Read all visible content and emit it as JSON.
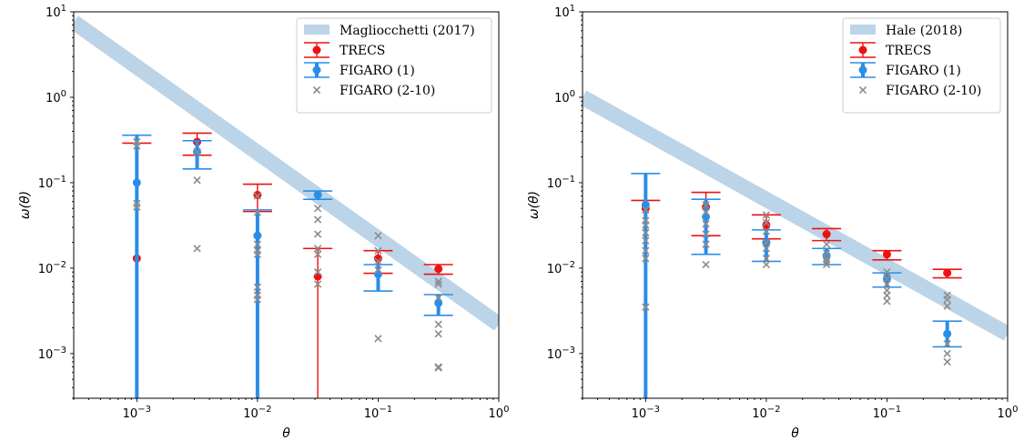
{
  "chart_data": [
    {
      "type": "scatter",
      "title": "",
      "xlabel": "θ",
      "ylabel": "ω(θ)",
      "xscale": "log",
      "yscale": "log",
      "xlim": [
        0.0003,
        1.0
      ],
      "ylim": [
        0.0003,
        10.0
      ],
      "x_ticks": [
        0.001,
        0.01,
        0.1,
        1.0
      ],
      "x_tick_labels": [
        {
          "base": "10",
          "exp": "−3"
        },
        {
          "base": "10",
          "exp": "−2"
        },
        {
          "base": "10",
          "exp": "−1"
        },
        {
          "base": "10",
          "exp": "0"
        }
      ],
      "y_ticks": [
        0.001,
        0.01,
        0.1,
        1.0,
        10.0
      ],
      "y_tick_labels": [
        {
          "base": "10",
          "exp": "−3"
        },
        {
          "base": "10",
          "exp": "−2"
        },
        {
          "base": "10",
          "exp": "−1"
        },
        {
          "base": "10",
          "exp": "0"
        },
        {
          "base": "10",
          "exp": "1"
        }
      ],
      "grid": false,
      "legend_position": "top-right",
      "band": {
        "name": "Magliocchetti (2017)",
        "color": "#bcd4e8",
        "x": [
          0.0003,
          1.0
        ],
        "y_center": [
          7.6,
          0.0022
        ]
      },
      "series": [
        {
          "name": "TRECS",
          "color": "#ee1111",
          "marker": "circle",
          "x": [
            0.001,
            0.00316,
            0.01,
            0.0316,
            0.1,
            0.316
          ],
          "y": [
            0.013,
            0.3,
            0.072,
            0.008,
            0.013,
            0.0098
          ],
          "y_lower": [
            0.0003,
            0.21,
            0.046,
            0.0003,
            0.0087,
            0.0085
          ],
          "y_upper": [
            0.29,
            0.38,
            0.096,
            0.017,
            0.016,
            0.011
          ]
        },
        {
          "name": "FIGARO (1)",
          "color": "#2a8ee8",
          "marker": "circle",
          "x": [
            0.001,
            0.00316,
            0.01,
            0.0316,
            0.1,
            0.316
          ],
          "y": [
            0.1,
            0.23,
            0.024,
            0.072,
            0.0085,
            0.0039
          ],
          "y_lower": [
            0.0003,
            0.145,
            0.0003,
            0.064,
            0.0054,
            0.0028
          ],
          "y_upper": [
            0.36,
            0.31,
            0.048,
            0.08,
            0.011,
            0.0049
          ]
        },
        {
          "name": "FIGARO (2-10)",
          "color": "#8c8c8c",
          "marker": "x",
          "x": [
            0.001,
            0.001,
            0.001,
            0.001,
            0.00316,
            0.00316,
            0.00316,
            0.01,
            0.01,
            0.01,
            0.01,
            0.01,
            0.01,
            0.01,
            0.01,
            0.0316,
            0.0316,
            0.0316,
            0.0316,
            0.0316,
            0.0316,
            0.0316,
            0.1,
            0.1,
            0.1,
            0.1,
            0.1,
            0.316,
            0.316,
            0.316,
            0.316,
            0.316,
            0.316,
            0.316
          ],
          "y": [
            0.3,
            0.27,
            0.057,
            0.052,
            0.23,
            0.107,
            0.017,
            0.07,
            0.045,
            0.019,
            0.016,
            0.0145,
            0.006,
            0.0048,
            0.0043,
            0.05,
            0.037,
            0.025,
            0.017,
            0.0145,
            0.009,
            0.0065,
            0.024,
            0.016,
            0.012,
            0.0095,
            0.0015,
            0.007,
            0.0065,
            0.0045,
            0.0022,
            0.0017,
            0.0007,
            0.00068
          ]
        }
      ]
    },
    {
      "type": "scatter",
      "title": "",
      "xlabel": "θ",
      "ylabel": "ω(θ)",
      "xscale": "log",
      "yscale": "log",
      "xlim": [
        0.0003,
        1.0
      ],
      "ylim": [
        0.0003,
        10.0
      ],
      "x_ticks": [
        0.001,
        0.01,
        0.1,
        1.0
      ],
      "x_tick_labels": [
        {
          "base": "10",
          "exp": "−3"
        },
        {
          "base": "10",
          "exp": "−2"
        },
        {
          "base": "10",
          "exp": "−1"
        },
        {
          "base": "10",
          "exp": "0"
        }
      ],
      "y_ticks": [
        0.001,
        0.01,
        0.1,
        1.0,
        10.0
      ],
      "y_tick_labels": [
        {
          "base": "10",
          "exp": "−3"
        },
        {
          "base": "10",
          "exp": "−2"
        },
        {
          "base": "10",
          "exp": "−1"
        },
        {
          "base": "10",
          "exp": "0"
        },
        {
          "base": "10",
          "exp": "1"
        }
      ],
      "grid": false,
      "legend_position": "top-right",
      "band": {
        "name": "Hale (2018)",
        "color": "#bcd4e8",
        "x": [
          0.0003,
          1.0
        ],
        "y_center": [
          1.0,
          0.0017
        ]
      },
      "series": [
        {
          "name": "TRECS",
          "color": "#ee1111",
          "marker": "circle",
          "x": [
            0.001,
            0.00316,
            0.01,
            0.0316,
            0.1,
            0.316
          ],
          "y": [
            0.05,
            0.052,
            0.032,
            0.025,
            0.0145,
            0.0088
          ],
          "y_lower": [
            0.0003,
            0.024,
            0.022,
            0.021,
            0.0125,
            0.0077
          ],
          "y_upper": [
            0.062,
            0.077,
            0.042,
            0.029,
            0.016,
            0.0097
          ]
        },
        {
          "name": "FIGARO (1)",
          "color": "#2a8ee8",
          "marker": "circle",
          "x": [
            0.001,
            0.00316,
            0.01,
            0.0316,
            0.1,
            0.316
          ],
          "y": [
            0.055,
            0.04,
            0.02,
            0.014,
            0.0075,
            0.0017
          ],
          "y_lower": [
            0.0003,
            0.0145,
            0.012,
            0.011,
            0.006,
            0.0012
          ],
          "y_upper": [
            0.128,
            0.064,
            0.028,
            0.017,
            0.0088,
            0.0024
          ]
        },
        {
          "name": "FIGARO (2-10)",
          "color": "#8c8c8c",
          "marker": "x",
          "x": [
            0.001,
            0.001,
            0.001,
            0.001,
            0.001,
            0.001,
            0.001,
            0.001,
            0.00316,
            0.00316,
            0.00316,
            0.00316,
            0.00316,
            0.00316,
            0.01,
            0.01,
            0.01,
            0.01,
            0.01,
            0.01,
            0.01,
            0.0316,
            0.0316,
            0.0316,
            0.0316,
            0.0316,
            0.1,
            0.1,
            0.1,
            0.1,
            0.1,
            0.1,
            0.316,
            0.316,
            0.316,
            0.316,
            0.316,
            0.316
          ],
          "y": [
            0.048,
            0.036,
            0.032,
            0.026,
            0.021,
            0.016,
            0.013,
            0.0035,
            0.055,
            0.045,
            0.033,
            0.025,
            0.019,
            0.011,
            0.042,
            0.034,
            0.027,
            0.02,
            0.017,
            0.013,
            0.011,
            0.019,
            0.015,
            0.013,
            0.012,
            0.011,
            0.009,
            0.0075,
            0.0065,
            0.0055,
            0.0048,
            0.0041,
            0.0048,
            0.0043,
            0.0036,
            0.0013,
            0.001,
            0.0008
          ]
        }
      ]
    }
  ]
}
